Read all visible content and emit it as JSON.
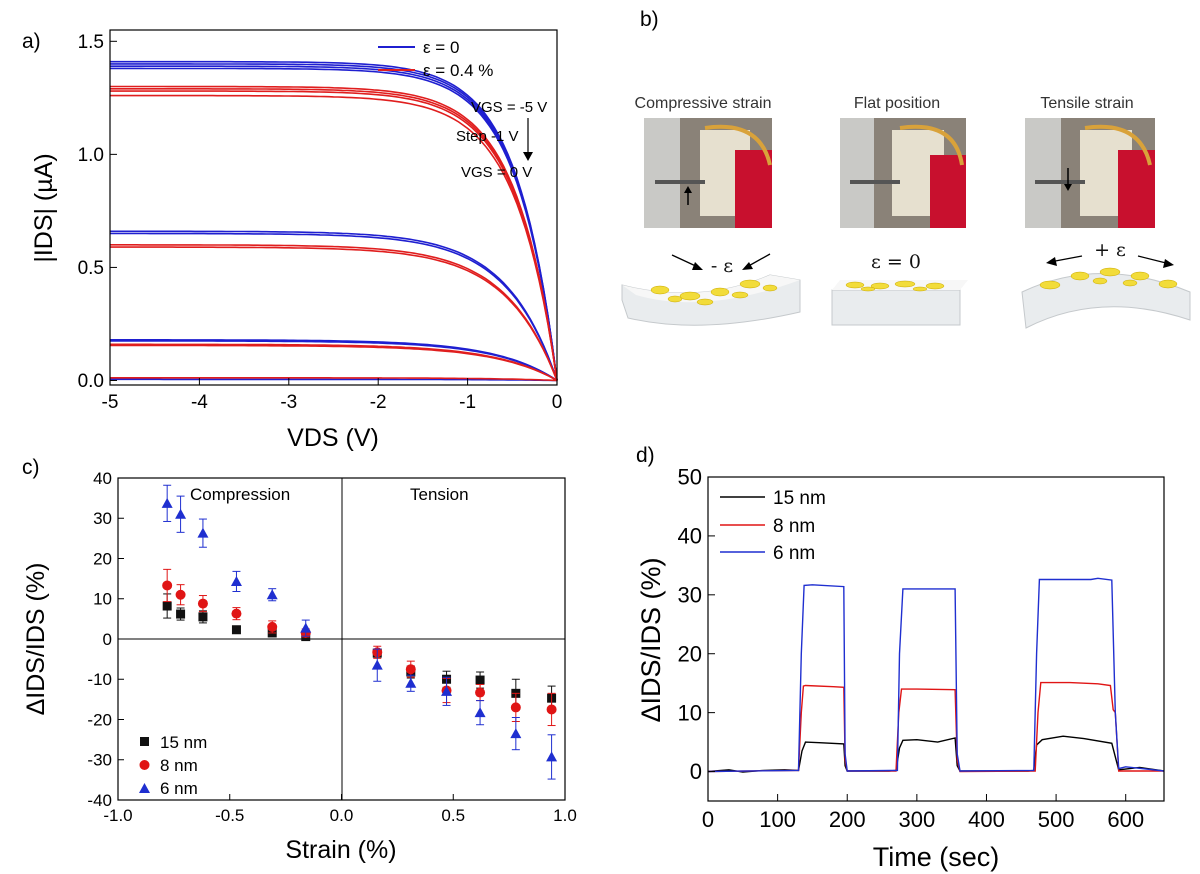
{
  "panels": {
    "a": "a)",
    "b": "b)",
    "c": "c)",
    "d": "d)"
  },
  "photo_panel": {
    "captions": [
      "Compressive strain",
      "Flat position",
      "Tensile strain"
    ],
    "strain_labels": [
      "- ε",
      "ε = 0",
      "+ ε"
    ],
    "colors": {
      "substrate": "#e9ecee",
      "flake": "#f2dc3a",
      "photo_bg": "#8a8278",
      "clip": "#c8102e",
      "lead": "#d9a23a"
    }
  },
  "chart_data": [
    {
      "id": "a",
      "type": "line",
      "xlabel": "VDS (V)",
      "ylabel": "|IDS| (µA)",
      "xlim": [
        -5,
        0
      ],
      "ylim": [
        -0.02,
        1.55
      ],
      "xticks": [
        -5,
        -4,
        -3,
        -2,
        -1,
        0
      ],
      "yticks": [
        0.0,
        0.5,
        1.0,
        1.5
      ],
      "xtick_labels": [
        "-5",
        "-4",
        "-3",
        "-2",
        "-1",
        "0"
      ],
      "ytick_labels": [
        "0.0",
        "0.5",
        "1.0",
        "1.5"
      ],
      "legend": [
        {
          "label": "ε = 0",
          "color": "#1f1fd0"
        },
        {
          "label": "ε = 0.4 %",
          "color": "#e01e1e"
        }
      ],
      "annotations": [
        "VGS = -5 V",
        "Step -1 V",
        "VGS = 0 V"
      ],
      "series": [
        {
          "group": "ε = 0",
          "color": "#1f1fd0",
          "saturation_values": [
            1.41,
            1.4,
            1.39,
            1.38,
            0.66,
            0.65,
            0.18,
            0.175,
            0.005
          ]
        },
        {
          "group": "ε = 0.4 %",
          "color": "#e01e1e",
          "saturation_values": [
            1.3,
            1.29,
            1.28,
            1.26,
            0.6,
            0.59,
            0.16,
            0.155,
            0.012
          ]
        }
      ]
    },
    {
      "id": "c",
      "type": "scatter",
      "xlabel": "Strain (%)",
      "ylabel": "ΔIDS/IDS (%)",
      "xlim": [
        -1.0,
        1.0
      ],
      "ylim": [
        -40,
        40
      ],
      "xticks": [
        -1.0,
        -0.5,
        0.0,
        0.5,
        1.0
      ],
      "yticks": [
        -40,
        -30,
        -20,
        -10,
        0,
        10,
        20,
        30,
        40
      ],
      "xtick_labels": [
        "-1.0",
        "-0.5",
        "0.0",
        "0.5",
        "1.0"
      ],
      "ytick_labels": [
        "-40",
        "-30",
        "-20",
        "-10",
        "0",
        "10",
        "20",
        "30",
        "40"
      ],
      "region_labels": [
        "Compression",
        "Tension"
      ],
      "series": [
        {
          "name": "15 nm",
          "color": "#111111",
          "marker": "square",
          "x": [
            -0.78,
            -0.72,
            -0.62,
            -0.47,
            -0.31,
            -0.16,
            0.16,
            0.31,
            0.47,
            0.62,
            0.78,
            0.94
          ],
          "y": [
            8.2,
            6.2,
            5.5,
            2.3,
            1.5,
            0.6,
            -3.5,
            -8.2,
            -10.0,
            -10.2,
            -13.5,
            -14.7
          ],
          "err": [
            3,
            1.5,
            1.5,
            0.7,
            0.7,
            0.5,
            1.0,
            1.5,
            2.0,
            2.0,
            3.5,
            3.0
          ]
        },
        {
          "name": "8 nm",
          "color": "#e01515",
          "marker": "circle",
          "x": [
            -0.78,
            -0.72,
            -0.62,
            -0.47,
            -0.31,
            -0.16,
            0.16,
            0.31,
            0.47,
            0.62,
            0.78,
            0.94
          ],
          "y": [
            13.3,
            11.0,
            8.8,
            6.3,
            3.0,
            1.5,
            -3.3,
            -7.5,
            -12.8,
            -13.3,
            -17.0,
            -17.5
          ],
          "err": [
            4.0,
            2.5,
            2.0,
            1.5,
            1.5,
            1.0,
            1.5,
            2.0,
            3.0,
            2.0,
            3.5,
            4.0
          ]
        },
        {
          "name": "6 nm",
          "color": "#1f2fd0",
          "marker": "triangle",
          "x": [
            -0.78,
            -0.72,
            -0.62,
            -0.47,
            -0.31,
            -0.16,
            0.16,
            0.31,
            0.47,
            0.62,
            0.78,
            0.94
          ],
          "y": [
            33.7,
            31.0,
            26.3,
            14.3,
            11.0,
            2.7,
            -6.5,
            -11.0,
            -13.0,
            -18.3,
            -23.5,
            -29.3
          ],
          "err": [
            4.5,
            4.5,
            3.5,
            2.5,
            1.5,
            2.0,
            4.0,
            2.0,
            3.5,
            3.0,
            4.0,
            5.5
          ]
        }
      ]
    },
    {
      "id": "d",
      "type": "line",
      "xlabel": "Time (sec)",
      "ylabel": "ΔIDS/IDS (%)",
      "xlim": [
        0,
        655
      ],
      "ylim": [
        -5,
        50
      ],
      "xticks": [
        0,
        100,
        200,
        300,
        400,
        500,
        600
      ],
      "yticks": [
        0,
        10,
        20,
        30,
        40,
        50
      ],
      "xtick_labels": [
        "0",
        "100",
        "200",
        "300",
        "400",
        "500",
        "600"
      ],
      "ytick_labels": [
        "0",
        "10",
        "20",
        "30",
        "40",
        "50"
      ],
      "series": [
        {
          "name": "15 nm",
          "color": "#000000",
          "x": [
            0,
            30,
            50,
            80,
            110,
            130,
            135,
            140,
            160,
            195,
            197,
            200,
            260,
            270,
            275,
            280,
            300,
            330,
            355,
            358,
            362,
            400,
            460,
            468,
            472,
            480,
            510,
            540,
            580,
            585,
            590,
            620,
            655
          ],
          "y": [
            0,
            0.3,
            -0.1,
            0.2,
            0.3,
            0.2,
            3.5,
            5.0,
            4.9,
            4.7,
            1.0,
            0.1,
            0.1,
            0.2,
            4.0,
            5.3,
            5.4,
            5.0,
            5.7,
            1.0,
            0.1,
            0.1,
            0.1,
            0.2,
            4.5,
            5.4,
            6.0,
            5.6,
            4.8,
            2.5,
            0.3,
            0.7,
            0.1
          ]
        },
        {
          "name": "8 nm",
          "color": "#e01515",
          "x": [
            0,
            130,
            134,
            137,
            140,
            180,
            195,
            197,
            200,
            270,
            274,
            278,
            300,
            355,
            358,
            362,
            470,
            474,
            478,
            520,
            560,
            578,
            582,
            585,
            590,
            655
          ],
          "y": [
            0,
            0.2,
            10.0,
            14.5,
            14.6,
            14.4,
            14.3,
            2.0,
            0.1,
            0.1,
            10.0,
            14.0,
            14.0,
            13.9,
            2.0,
            0.0,
            0.1,
            10.0,
            15.1,
            15.1,
            14.9,
            14.6,
            10.5,
            10.0,
            0.1,
            0.1
          ]
        },
        {
          "name": "6 nm",
          "color": "#1f2fd0",
          "x": [
            0,
            130,
            134,
            138,
            150,
            195,
            197,
            200,
            272,
            275,
            280,
            355,
            358,
            362,
            468,
            472,
            476,
            520,
            550,
            560,
            580,
            585,
            590,
            600,
            655
          ],
          "y": [
            0,
            0.2,
            20.0,
            31.6,
            31.7,
            31.4,
            3.0,
            0.1,
            0.2,
            20.0,
            31.0,
            31.0,
            3.0,
            0.1,
            0.2,
            20.0,
            32.6,
            32.6,
            32.6,
            32.8,
            32.5,
            10.0,
            0.5,
            0.8,
            0.1
          ]
        }
      ]
    }
  ]
}
